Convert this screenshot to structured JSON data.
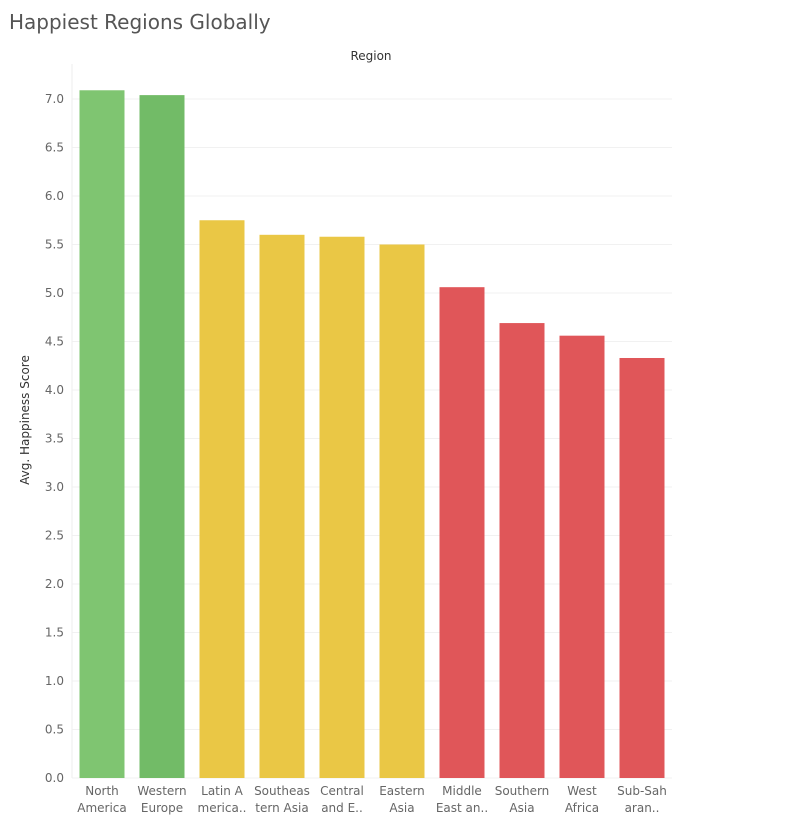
{
  "page": {
    "title": "Happiest Regions Globally"
  },
  "chart_data": {
    "type": "bar",
    "title": "Happiest Regions Globally",
    "xlabel": "Region",
    "ylabel": "Avg. Happiness Score",
    "ylim": [
      0,
      7.3
    ],
    "yticks": [
      0.0,
      0.5,
      1.0,
      1.5,
      2.0,
      2.5,
      3.0,
      3.5,
      4.0,
      4.5,
      5.0,
      5.5,
      6.0,
      6.5,
      7.0
    ],
    "ytick_labels": [
      "0.0",
      "0.5",
      "1.0",
      "1.5",
      "2.0",
      "2.5",
      "3.0",
      "3.5",
      "4.0",
      "4.5",
      "5.0",
      "5.5",
      "6.0",
      "6.5",
      "7.0"
    ],
    "grid": true,
    "categories": [
      "North America",
      "Western Europe",
      "Latin America",
      "Southeastern Asia",
      "Central and Eastern Europe",
      "Eastern Asia",
      "Middle East and Northern Africa",
      "Southern Asia",
      "West Africa",
      "Sub-Saharan Africa"
    ],
    "category_labels": [
      [
        "North",
        "America"
      ],
      [
        "Western",
        "Europe"
      ],
      [
        "Latin A",
        "merica.."
      ],
      [
        "Southeas",
        "tern Asia"
      ],
      [
        "Central",
        "and E.."
      ],
      [
        "Eastern",
        "Asia"
      ],
      [
        "Middle",
        "East an.."
      ],
      [
        "Southern",
        "Asia"
      ],
      [
        "West",
        "Africa"
      ],
      [
        "Sub-Sah",
        "aran.."
      ]
    ],
    "values": [
      7.09,
      7.04,
      5.75,
      5.6,
      5.58,
      5.5,
      5.06,
      4.69,
      4.56,
      4.33
    ],
    "colors": [
      "#7fc571",
      "#72bb67",
      "#eac745",
      "#eac745",
      "#eac745",
      "#eac745",
      "#e05659",
      "#e05659",
      "#e05659",
      "#e05659"
    ]
  }
}
